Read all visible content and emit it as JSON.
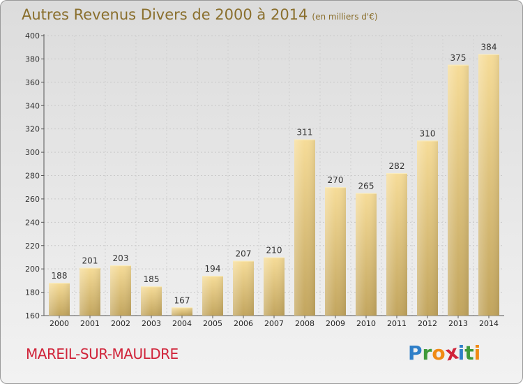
{
  "title": "Autres Revenus Divers de 2000 à 2014",
  "subtitle": "(en milliers d'€)",
  "commune": "MAREIL-SUR-MAULDRE",
  "logo": {
    "letters": [
      "P",
      "r",
      "o",
      "x",
      "i",
      "t",
      "i"
    ],
    "colors": [
      "#2f7fc8",
      "#3f9a3a",
      "#f08a14",
      "#d0243a",
      "#2f7fc8",
      "#3f9a3a",
      "#f08a14"
    ]
  },
  "chart_data": {
    "type": "bar",
    "categories": [
      "2000",
      "2001",
      "2002",
      "2003",
      "2004",
      "2005",
      "2006",
      "2007",
      "2008",
      "2009",
      "2010",
      "2011",
      "2012",
      "2013",
      "2014"
    ],
    "values": [
      188,
      201,
      203,
      185,
      167,
      194,
      207,
      210,
      311,
      270,
      265,
      282,
      310,
      375,
      384
    ],
    "ylim": [
      160,
      400
    ],
    "yticks": [
      160,
      180,
      200,
      220,
      240,
      260,
      280,
      300,
      320,
      340,
      360,
      380,
      400
    ],
    "grid": true,
    "bar_color": "#e8c96f"
  }
}
